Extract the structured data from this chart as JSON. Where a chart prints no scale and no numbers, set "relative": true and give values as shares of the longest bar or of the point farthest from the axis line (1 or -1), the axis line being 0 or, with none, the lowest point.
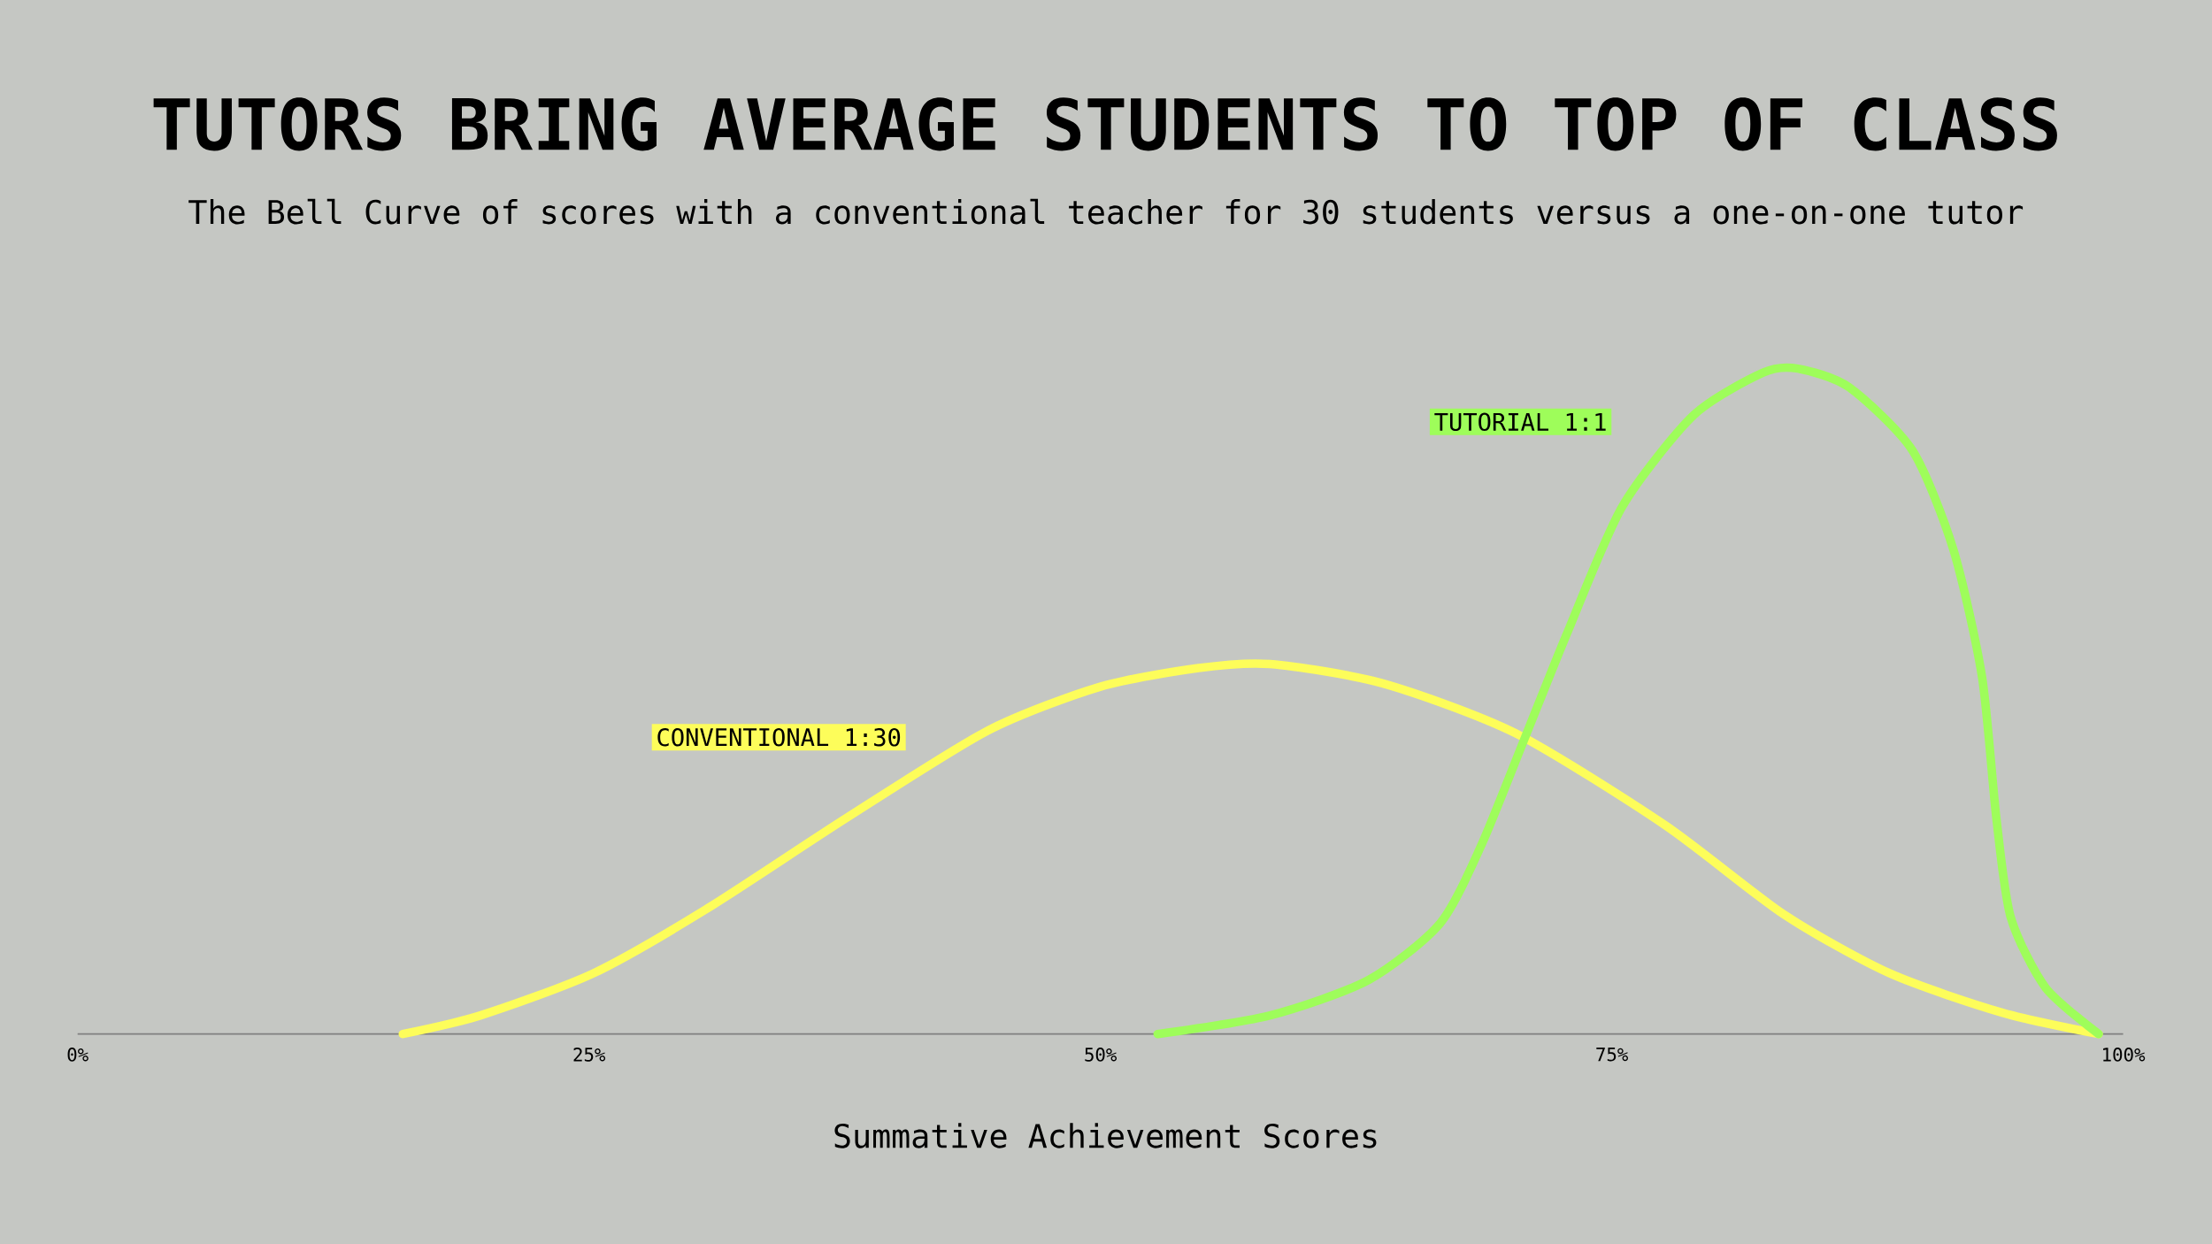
{
  "chart_data": {
    "type": "line",
    "title": "TUTORS BRING AVERAGE STUDENTS TO TOP OF CLASS",
    "subtitle": "The Bell Curve of scores with a conventional teacher for 30 students versus a one-on-one tutor",
    "xlabel": "Summative Achievement Scores",
    "relative": true,
    "xlim": [
      0,
      100
    ],
    "xticks": [
      {
        "value": 0,
        "label": "0%"
      },
      {
        "value": 25,
        "label": "25%"
      },
      {
        "value": 50,
        "label": "50%"
      },
      {
        "value": 75,
        "label": "75%"
      },
      {
        "value": 100,
        "label": "100%"
      }
    ],
    "legend": false,
    "marker": "none",
    "line_style": "solid",
    "series": [
      {
        "name": "CONVENTIONAL 1:30",
        "color": "#fdfd5a",
        "x": [
          15.9,
          19.7,
          25.2,
          30.7,
          37.6,
          44.5,
          50,
          54.8,
          58.3,
          63.8,
          70.3,
          77.6,
          83.4,
          88.6,
          94.1,
          98.8
        ],
        "values": [
          0,
          0.028,
          0.091,
          0.187,
          0.325,
          0.456,
          0.522,
          0.55,
          0.556,
          0.527,
          0.452,
          0.314,
          0.18,
          0.091,
          0.032,
          0
        ]
      },
      {
        "name": "TUTORIAL 1:1",
        "color": "#9efd5a",
        "x": [
          52.8,
          58.3,
          63.1,
          66.6,
          68.6,
          70.7,
          72.8,
          75.5,
          79.0,
          82.4,
          84.1,
          86.6,
          89.7,
          91.7,
          93.1,
          93.8,
          94.5,
          96.2,
          98.8
        ],
        "values": [
          0,
          0.028,
          0.081,
          0.166,
          0.282,
          0.441,
          0.601,
          0.792,
          0.93,
          0.994,
          1,
          0.972,
          0.877,
          0.728,
          0.537,
          0.325,
          0.176,
          0.07,
          0
        ]
      }
    ]
  }
}
